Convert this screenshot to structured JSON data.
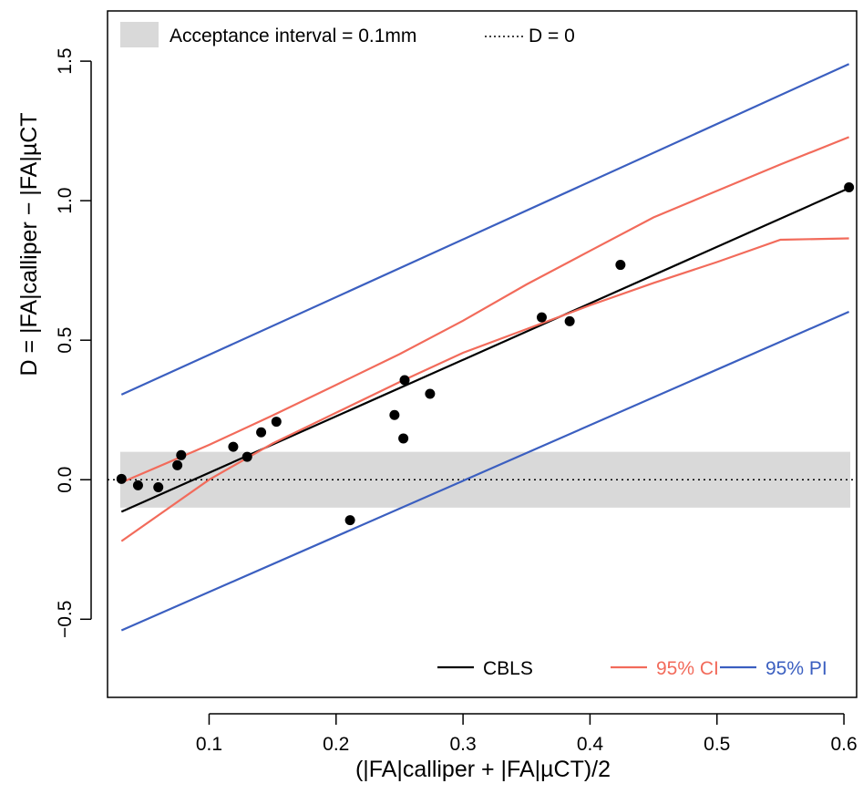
{
  "chart_data": {
    "type": "scatter",
    "xlabel": "(|FA|calliper + |FA|µCT)/2",
    "ylabel": "D = |FA|calliper − |FA|µCT",
    "xlim": [
      0.02,
      0.61
    ],
    "ylim": [
      -0.78,
      1.68
    ],
    "xticks": [
      {
        "value": 0.1,
        "label": "0.1"
      },
      {
        "value": 0.2,
        "label": "0.2"
      },
      {
        "value": 0.3,
        "label": "0.3"
      },
      {
        "value": 0.4,
        "label": "0.4"
      },
      {
        "value": 0.5,
        "label": "0.5"
      },
      {
        "value": 0.6,
        "label": "0.6"
      }
    ],
    "yticks": [
      {
        "value": -0.5,
        "label": "−0.5"
      },
      {
        "value": 0.0,
        "label": "0.0"
      },
      {
        "value": 0.5,
        "label": "0.5"
      },
      {
        "value": 1.0,
        "label": "1.0"
      },
      {
        "value": 1.5,
        "label": "1.5"
      }
    ],
    "grid": false,
    "acceptance_band": {
      "y_min": -0.1,
      "y_max": 0.1,
      "x_start": 0.03,
      "x_end": 0.605,
      "color": "#d9d9d9"
    },
    "reference_line": {
      "y": 0.0
    },
    "points": {
      "x": [
        0.031,
        0.044,
        0.06,
        0.075,
        0.078,
        0.119,
        0.13,
        0.141,
        0.153,
        0.211,
        0.246,
        0.253,
        0.254,
        0.274,
        0.362,
        0.384,
        0.424,
        0.604
      ],
      "y": [
        0.003,
        -0.02,
        -0.027,
        0.052,
        0.088,
        0.118,
        0.082,
        0.17,
        0.208,
        -0.145,
        0.232,
        0.148,
        0.357,
        0.308,
        0.582,
        0.568,
        0.77,
        1.048
      ]
    },
    "series": [
      {
        "name": "CBLS",
        "color": "#000000",
        "x": [
          0.031,
          0.604
        ],
        "y": [
          -0.115,
          1.045
        ]
      },
      {
        "name": "95% CI",
        "color": "#f26b5b",
        "part": "upper",
        "x": [
          0.031,
          0.1,
          0.15,
          0.2,
          0.25,
          0.3,
          0.35,
          0.4,
          0.45,
          0.5,
          0.55,
          0.604
        ],
        "y": [
          -0.01,
          0.125,
          0.23,
          0.34,
          0.45,
          0.57,
          0.7,
          0.82,
          0.94,
          1.035,
          1.13,
          1.228
        ]
      },
      {
        "name": "95% CI",
        "color": "#f26b5b",
        "part": "lower",
        "x": [
          0.031,
          0.1,
          0.15,
          0.2,
          0.25,
          0.3,
          0.35,
          0.4,
          0.45,
          0.5,
          0.55,
          0.604
        ],
        "y": [
          -0.22,
          0.0,
          0.13,
          0.24,
          0.35,
          0.455,
          0.54,
          0.625,
          0.705,
          0.78,
          0.86,
          0.865
        ]
      },
      {
        "name": "95% PI",
        "color": "#3b5fc0",
        "part": "upper",
        "x": [
          0.031,
          0.604
        ],
        "y": [
          0.305,
          1.49
        ]
      },
      {
        "name": "95% PI",
        "color": "#3b5fc0",
        "part": "lower",
        "x": [
          0.031,
          0.604
        ],
        "y": [
          -0.54,
          0.602
        ]
      }
    ],
    "legend_top": [
      {
        "kind": "box",
        "label": "Acceptance interval = 0.1mm",
        "color": "#d9d9d9"
      },
      {
        "kind": "dotted",
        "label": "D = 0",
        "color": "#000000"
      }
    ],
    "legend_bottom": [
      {
        "label": "CBLS",
        "color": "#000000"
      },
      {
        "label": "95% CI",
        "color": "#f26b5b"
      },
      {
        "label": "95% PI",
        "color": "#3b5fc0"
      }
    ]
  }
}
